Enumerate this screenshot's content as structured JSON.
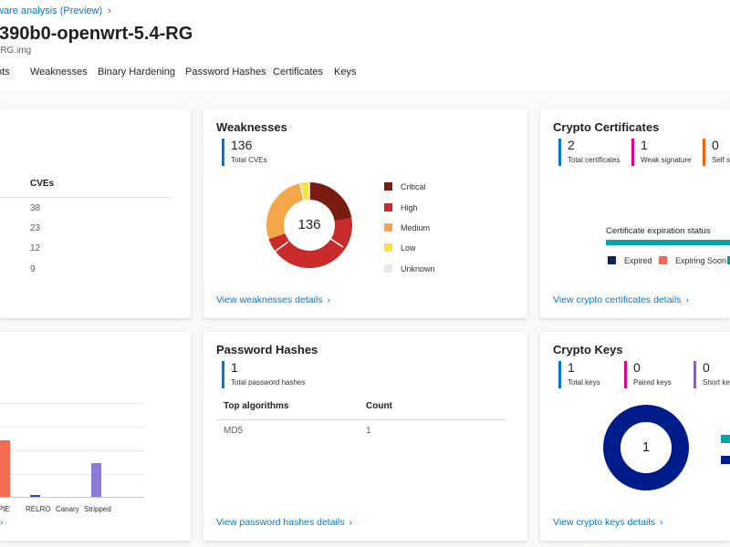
{
  "header": {
    "breadcrumb": "ware analysis (Preview)",
    "title": "390b0-openwrt-5.4-RG",
    "subtitle": "-RG.img"
  },
  "tabs": [
    {
      "label": "nts"
    },
    {
      "label": "Weaknesses"
    },
    {
      "label": "Binary Hardening"
    },
    {
      "label": "Password Hashes"
    },
    {
      "label": "Certificates"
    },
    {
      "label": "Keys"
    }
  ],
  "components_card": {
    "column_header": "CVEs",
    "values": [
      "38",
      "23",
      "12",
      "9"
    ]
  },
  "weaknesses_card": {
    "title": "Weaknesses",
    "total_value": "136",
    "total_label": "Total CVEs",
    "donut_center": "136",
    "legend": [
      {
        "label": "Critical",
        "color": "#7b1c12"
      },
      {
        "label": "High",
        "color": "#c92b2b"
      },
      {
        "label": "Medium",
        "color": "#f4a74a"
      },
      {
        "label": "Low",
        "color": "#f7e13e"
      },
      {
        "label": "Unknown",
        "color": "#e8e8e8"
      }
    ],
    "link": "View weaknesses details"
  },
  "crypto_certs_card": {
    "title": "Crypto Certificates",
    "stats": [
      {
        "value": "2",
        "label": "Total certificates",
        "color": "#0078d4"
      },
      {
        "value": "1",
        "label": "Weak signature",
        "color": "#e3008c"
      },
      {
        "value": "0",
        "label": "Self si",
        "color": "#f7630c"
      }
    ],
    "expiration_title": "Certificate expiration status",
    "legend": [
      {
        "label": "Expired",
        "color": "#10235c"
      },
      {
        "label": "Expiring Soon",
        "color": "#ef6950"
      }
    ],
    "link": "View crypto certificates details"
  },
  "binary_card": {
    "categories": [
      "PIE",
      "RELRO",
      "Canary",
      "Stripped"
    ],
    "colors": [
      "#f36b50",
      "#3348a6",
      "#3348a6",
      "#8b7ad6"
    ]
  },
  "password_card": {
    "title": "Password Hashes",
    "total_value": "1",
    "total_label": "Total password hashes",
    "col_algorithm": "Top algorithms",
    "col_count": "Count",
    "rows": [
      {
        "algorithm": "MD5",
        "count": "1"
      }
    ],
    "link": "View password hashes details"
  },
  "crypto_keys_card": {
    "title": "Crypto Keys",
    "stats": [
      {
        "value": "1",
        "label": "Total keys",
        "color": "#0078d4"
      },
      {
        "value": "0",
        "label": "Paired keys",
        "color": "#e3008c"
      },
      {
        "value": "0",
        "label": "Short ke",
        "color": "#8764b8"
      }
    ],
    "donut_center": "1",
    "donut_color": "#001b8a",
    "legend_colors": [
      "#00a6a6",
      "#001b8a"
    ],
    "link": "View crypto keys details"
  }
}
